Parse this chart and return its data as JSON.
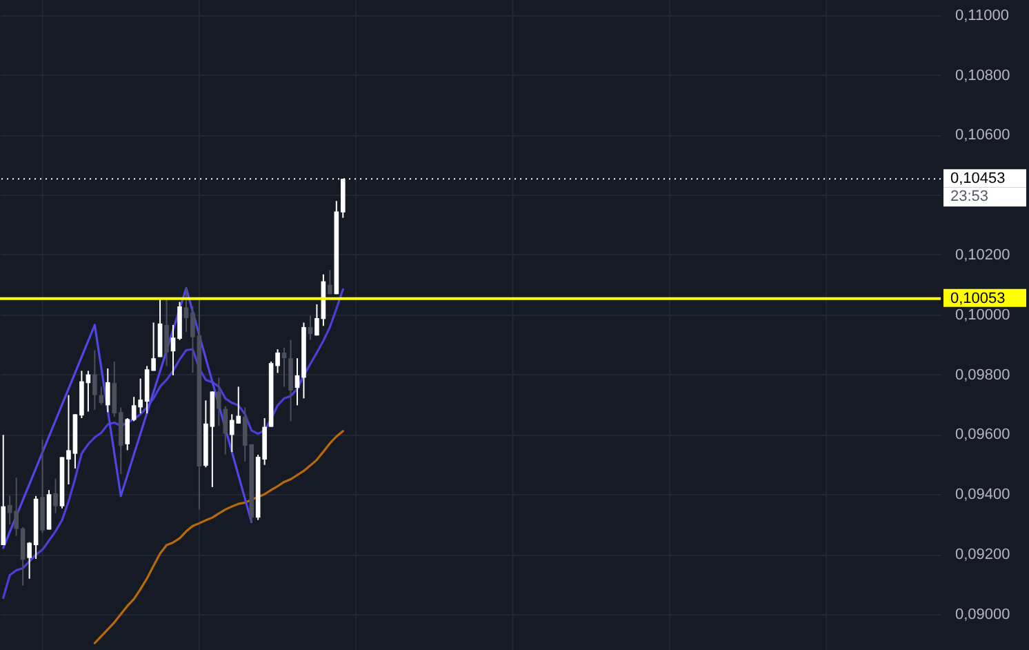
{
  "chart_data": {
    "type": "candlestick",
    "categories": [
      null,
      null,
      null,
      null,
      null,
      null,
      null,
      null,
      null,
      null,
      null,
      null,
      null,
      null,
      null,
      null,
      null,
      null,
      null,
      null,
      null,
      null,
      null,
      null,
      null,
      null,
      null,
      null,
      null,
      null,
      null,
      null,
      null,
      null,
      null,
      null,
      null,
      null,
      null,
      null,
      null,
      null,
      null,
      null,
      null,
      null,
      null,
      null,
      null,
      null,
      null,
      null,
      null,
      null,
      null,
      null,
      null,
      null,
      null,
      null,
      null,
      null,
      null,
      null,
      null,
      null,
      null,
      null,
      null,
      null,
      null,
      null,
      null,
      null,
      null,
      null,
      null,
      null,
      null,
      null,
      null,
      null,
      null,
      null,
      null,
      null,
      null,
      null,
      null,
      null,
      null,
      null,
      null,
      null,
      null,
      null,
      null,
      null,
      null,
      null,
      null,
      null,
      null,
      null,
      null,
      null,
      null,
      null,
      null,
      null,
      null,
      null,
      null,
      null,
      null,
      null,
      null,
      null,
      null,
      null,
      null,
      null,
      null,
      null,
      null,
      null,
      null,
      null,
      null,
      null,
      null,
      null,
      null,
      null,
      null,
      null,
      null,
      null,
      null,
      null,
      null,
      null,
      null,
      null
    ],
    "ohlc": [
      [
        0.0923,
        0.09598,
        0.0923,
        0.0936
      ],
      [
        0.09364,
        0.09395,
        0.09299,
        0.09337
      ],
      [
        0.09345,
        0.09455,
        0.09261,
        0.09284
      ],
      [
        0.09286,
        0.0929,
        0.09095,
        0.09181
      ],
      [
        0.09187,
        0.0924,
        0.09118,
        0.09238
      ],
      [
        0.0923,
        0.09394,
        0.09184,
        0.09385
      ],
      [
        0.09391,
        0.09582,
        0.09271,
        0.09279
      ],
      [
        0.09282,
        0.09414,
        0.09282,
        0.094
      ],
      [
        0.09403,
        0.09452,
        0.09337,
        0.0936
      ],
      [
        0.0936,
        0.09524,
        0.09353,
        0.09524
      ],
      [
        0.09516,
        0.09731,
        0.09433,
        0.09547
      ],
      [
        0.09535,
        0.09667,
        0.09486,
        0.09667
      ],
      [
        0.09663,
        0.09812,
        0.09654,
        0.09777
      ],
      [
        0.09771,
        0.09812,
        0.09676,
        0.098
      ],
      [
        0.098,
        0.09881,
        0.09682,
        0.09731
      ],
      [
        0.09731,
        0.09759,
        0.09699,
        0.09705
      ],
      [
        0.09697,
        0.0982,
        0.09674,
        0.09774
      ],
      [
        0.09771,
        0.09843,
        0.09659,
        0.0967
      ],
      [
        0.09674,
        0.0969,
        0.09467,
        0.09562
      ],
      [
        0.09567,
        0.09654,
        0.09547,
        0.09651
      ],
      [
        0.09648,
        0.09725,
        0.09644,
        0.09697
      ],
      [
        0.0969,
        0.09786,
        0.0967,
        0.09716
      ],
      [
        0.09709,
        0.09828,
        0.0967,
        0.09817
      ],
      [
        0.09812,
        0.09973,
        0.09812,
        0.09854
      ],
      [
        0.09858,
        0.1005,
        0.09858,
        0.0997
      ],
      [
        0.09965,
        0.1005,
        0.09828,
        0.09873
      ],
      [
        0.09877,
        0.09965,
        0.09797,
        0.09923
      ],
      [
        0.09919,
        0.10042,
        0.09915,
        0.10027
      ],
      [
        0.10024,
        0.10088,
        0.09942,
        0.09988
      ],
      [
        0.10007,
        0.10027,
        0.09805,
        0.09924
      ],
      [
        0.0993,
        0.1005,
        0.09348,
        0.09493
      ],
      [
        0.09495,
        0.09713,
        0.0949,
        0.09636
      ],
      [
        0.09625,
        0.09743,
        0.09424,
        0.09743
      ],
      [
        0.09743,
        0.09789,
        0.09628,
        0.09685
      ],
      [
        0.09685,
        0.09694,
        0.09533,
        0.09602
      ],
      [
        0.09598,
        0.09667,
        0.09541,
        0.09648
      ],
      [
        0.09636,
        0.09759,
        0.09636,
        0.09662
      ],
      [
        0.09659,
        0.0969,
        0.09509,
        0.09562
      ],
      [
        0.09567,
        0.09567,
        0.09307,
        0.09322
      ],
      [
        0.09322,
        0.09532,
        0.09314,
        0.09525
      ],
      [
        0.09516,
        0.09654,
        0.09498,
        0.09625
      ],
      [
        0.09625,
        0.09843,
        0.09625,
        0.09838
      ],
      [
        0.09828,
        0.09884,
        0.09805,
        0.09873
      ],
      [
        0.09873,
        0.09889,
        0.09759,
        0.09854
      ],
      [
        0.09854,
        0.09915,
        0.09644,
        0.09746
      ],
      [
        0.09755,
        0.09854,
        0.09697,
        0.09797
      ],
      [
        0.09789,
        0.09973,
        0.0972,
        0.09958
      ],
      [
        0.09958,
        0.09996,
        0.09915,
        0.09935
      ],
      [
        0.0993,
        0.10034,
        0.0993,
        0.09988
      ],
      [
        0.09985,
        0.10134,
        0.09962,
        0.10111
      ],
      [
        0.10099,
        0.10149,
        0.10068,
        0.10068
      ],
      [
        0.10068,
        0.10379,
        0.10068,
        0.10344
      ],
      [
        0.10341,
        0.10453,
        0.10323,
        0.10453
      ],
      null,
      null,
      null,
      null,
      null,
      null,
      null,
      null,
      null,
      null,
      null,
      null,
      null,
      null,
      null,
      null,
      null,
      null,
      null,
      null,
      null,
      null,
      null,
      null,
      null,
      null,
      null,
      null,
      null,
      null,
      null,
      null,
      null,
      null,
      null,
      null,
      null,
      null,
      null,
      null,
      null,
      null,
      null,
      null,
      null,
      null,
      null,
      null,
      null,
      null,
      null,
      null,
      null,
      null,
      null,
      null,
      null,
      null,
      null,
      null,
      null,
      null,
      null,
      null,
      null,
      null,
      null,
      null,
      null,
      null,
      null,
      null,
      null,
      null,
      null,
      null,
      null,
      null,
      null,
      null,
      null,
      null,
      null,
      null,
      null,
      null,
      null,
      null,
      null,
      null,
      null
    ],
    "series": [
      {
        "type": "line",
        "color": "#4a3fd6",
        "values": [
          0.09054,
          0.0913,
          0.09146,
          0.09153,
          0.09176,
          0.09198,
          0.09215,
          0.09245,
          0.09276,
          0.09314,
          0.09376,
          0.09452,
          0.09536,
          0.09567,
          0.0959,
          0.09605,
          0.09633,
          0.09639,
          0.09628,
          0.09639,
          0.09651,
          0.09667,
          0.0969,
          0.0972,
          0.09759,
          0.09782,
          0.09812,
          0.0985,
          0.09881,
          0.09884,
          0.0982,
          0.09782,
          0.09774,
          0.09759,
          0.0972,
          0.09705,
          0.09697,
          0.09667,
          0.09613,
          0.09602,
          0.09613,
          0.09651,
          0.09697,
          0.0972,
          0.09728,
          0.09751,
          0.09797,
          0.09835,
          0.09873,
          0.09912,
          0.09958,
          0.10019,
          0.10084,
          null,
          null,
          null,
          null,
          null,
          null,
          null,
          null,
          null,
          null,
          null,
          null,
          null,
          null,
          null,
          null,
          null,
          null,
          null,
          null,
          null,
          null,
          null,
          null,
          null,
          null,
          null,
          null,
          null,
          null,
          null,
          null,
          null,
          null,
          null,
          null,
          null,
          null,
          null,
          null,
          null,
          null,
          null,
          null,
          null,
          null,
          null,
          null,
          null,
          null,
          null,
          null,
          null,
          null,
          null,
          null,
          null,
          null,
          null,
          null,
          null,
          null,
          null,
          null,
          null,
          null,
          null,
          null,
          null,
          null,
          null,
          null,
          null,
          null,
          null,
          null,
          null,
          null,
          null,
          null,
          null,
          null,
          null,
          null,
          null,
          null,
          null,
          null,
          null,
          null,
          null
        ]
      },
      {
        "type": "line",
        "color": "#b8690b",
        "values": [
          null,
          null,
          null,
          null,
          null,
          null,
          null,
          null,
          null,
          null,
          null,
          null,
          null,
          null,
          0.08903,
          0.08926,
          0.08949,
          0.08972,
          0.09,
          0.09027,
          0.0905,
          0.09083,
          0.09119,
          0.09161,
          0.09202,
          0.0923,
          0.09239,
          0.09253,
          0.09276,
          0.09294,
          0.09303,
          0.09313,
          0.09322,
          0.09336,
          0.09349,
          0.09359,
          0.09368,
          0.09372,
          0.09382,
          0.09391,
          0.094,
          0.09414,
          0.09427,
          0.09441,
          0.0945,
          0.09464,
          0.09478,
          0.09496,
          0.09515,
          0.09542,
          0.0957,
          0.09593,
          0.09611,
          null,
          null,
          null,
          null,
          null,
          null,
          null,
          null,
          null,
          null,
          null,
          null,
          null,
          null,
          null,
          null,
          null,
          null,
          null,
          null,
          null,
          null,
          null,
          null,
          null,
          null,
          null,
          null,
          null,
          null,
          null,
          null,
          null,
          null,
          null,
          null,
          null,
          null,
          null,
          null,
          null,
          null,
          null,
          null,
          null,
          null,
          null,
          null,
          null,
          null,
          null,
          null,
          null,
          null,
          null,
          null,
          null,
          null,
          null,
          null,
          null,
          null,
          null,
          null,
          null,
          null,
          null,
          null,
          null,
          null,
          null,
          null,
          null,
          null,
          null,
          null,
          null,
          null,
          null,
          null,
          null,
          null,
          null,
          null,
          null,
          null,
          null,
          null,
          null,
          null,
          null
        ]
      },
      {
        "type": "line",
        "color": "#5046e5",
        "values": [
          0.09221,
          null,
          null,
          null,
          null,
          null,
          null,
          null,
          null,
          null,
          null,
          null,
          null,
          null,
          0.09965,
          null,
          null,
          null,
          0.09394,
          null,
          null,
          null,
          null,
          null,
          null,
          null,
          null,
          null,
          0.10088,
          null,
          null,
          null,
          null,
          null,
          null,
          null,
          null,
          null,
          0.09307,
          null,
          null,
          null,
          null,
          null,
          null,
          null,
          null,
          null,
          null,
          null,
          null,
          null,
          null,
          null,
          null,
          null,
          null,
          null,
          null,
          null,
          null,
          null,
          null,
          null,
          null,
          null,
          null,
          null,
          null,
          null,
          null,
          null,
          null,
          null,
          null,
          null,
          null,
          null,
          null,
          null,
          null,
          null,
          null,
          null,
          null,
          null,
          null,
          null,
          null,
          null,
          null,
          null,
          null,
          null,
          null,
          null,
          null,
          null,
          null,
          null,
          null,
          null,
          null,
          null,
          null,
          null,
          null,
          null,
          null,
          null,
          null,
          null,
          null,
          null,
          null,
          null,
          null,
          null,
          null,
          null,
          null,
          null,
          null,
          null,
          null,
          null,
          null,
          null,
          null,
          null,
          null,
          null,
          null,
          null,
          null,
          null,
          null,
          null,
          null,
          null,
          null,
          null,
          null,
          null
        ]
      }
    ],
    "ylim": [
      0.0888,
      0.1105
    ],
    "yticks": [
      {
        "value": 0.09,
        "label": "0,09000"
      },
      {
        "value": 0.092,
        "label": "0,09200"
      },
      {
        "value": 0.094,
        "label": "0,09400"
      },
      {
        "value": 0.096,
        "label": "0,09600"
      },
      {
        "value": 0.098,
        "label": "0,09800"
      },
      {
        "value": 0.1,
        "label": "0,10000"
      },
      {
        "value": 0.102,
        "label": "0,10200"
      },
      {
        "value": 0.104,
        "label": null
      },
      {
        "value": 0.106,
        "label": "0,10600"
      },
      {
        "value": 0.108,
        "label": "0,10800"
      },
      {
        "value": 0.11,
        "label": "0,11000"
      }
    ],
    "grid": "y",
    "ref_lines": [
      {
        "axis": "y",
        "value": 0.10453,
        "label": "0,10453",
        "color": "#ffffff",
        "line_style": "dotted"
      },
      {
        "axis": "y",
        "value": 0.10053,
        "label": "0,10053",
        "color": "#ffff00",
        "line_style": "solid"
      }
    ],
    "annotations": [
      "23:53"
    ]
  }
}
